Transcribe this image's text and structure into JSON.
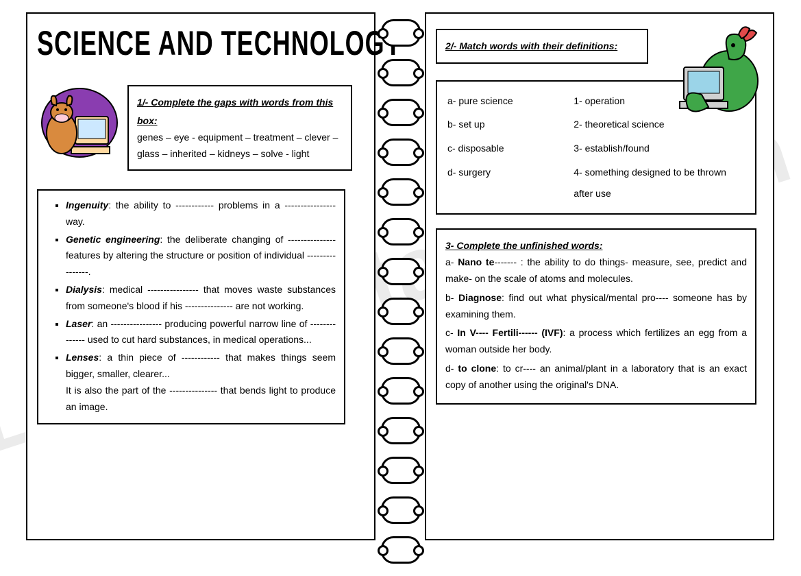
{
  "title": "SCIENCE AND TECHNOLOGY",
  "ex1": {
    "instruction": "1/- Complete the gaps with words from this box:",
    "words": "genes – eye - equipment – treatment – clever – glass – inherited – kidneys – solve - light",
    "items": [
      {
        "term": "Ingenuity",
        "text": ": the ability to ------------ problems in a ---------------- way."
      },
      {
        "term": "Genetic engineering",
        "text": ": the deliberate changing of --------------- features by altering the structure or position of individual ----------------."
      },
      {
        "term": "Dialysis",
        "text": ": medical ---------------- that moves waste substances from someone's blood if his --------------- are not working."
      },
      {
        "term": "Laser",
        "text": ": an ---------------- producing powerful narrow line of -------------- used to cut hard substances, in medical operations..."
      },
      {
        "term": "Lenses",
        "text": ": a thin piece of ------------ that makes things seem bigger, smaller, clearer...",
        "extra": "It is also the part of the --------------- that bends light to produce an image."
      }
    ]
  },
  "ex2": {
    "instruction": "2/- Match words with their definitions:",
    "left": [
      "a- pure science",
      "b- set up",
      "c- disposable",
      "d- surgery"
    ],
    "right": [
      "1- operation",
      "2- theoretical science",
      "3- establish/found",
      "4- something designed to be thrown after use"
    ]
  },
  "ex3": {
    "instruction": "3- Complete the unfinished words:",
    "items": [
      "a- <b>Nano te</b>------- : the ability to do things- measure, see, predict and make- on the scale of atoms and molecules.",
      "b- <b>Diagnose</b>: find out what physical/mental pro---- someone has by examining them.",
      "c- <b>In V---- Fertili------ (IVF)</b>: a process which fertilizes an egg from a woman outside her body.",
      "d- <b>to clone</b>: to cr---- an animal/plant in a laboratory that is an exact copy of another using the original's DNA."
    ]
  },
  "watermark": "eslprintables.com"
}
